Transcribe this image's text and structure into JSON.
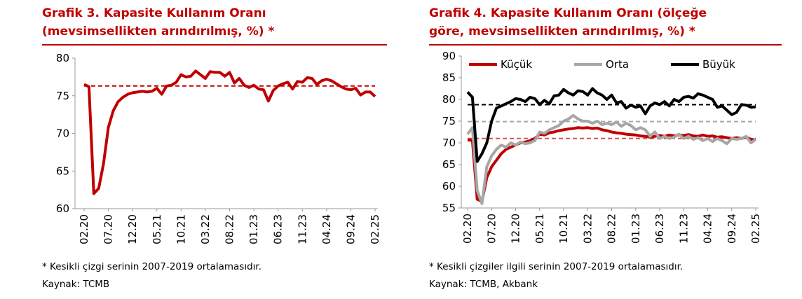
{
  "chart_data": [
    {
      "type": "line",
      "title": [
        "Grafik 3. Kapasite Kullanım Oranı",
        "(mevsimsellikten arındırılmış, %) *"
      ],
      "note": "* Kesikli çizgi serinin 2007-2019 ortalamasıdır.",
      "source": "Kaynak: TCMB",
      "categories": [
        "02.20",
        null,
        null,
        null,
        null,
        "07.20",
        null,
        null,
        null,
        null,
        "12.20",
        null,
        null,
        null,
        null,
        "05.21",
        null,
        null,
        null,
        null,
        "10.21",
        null,
        null,
        null,
        null,
        "03.22",
        null,
        null,
        null,
        null,
        "08.22",
        null,
        null,
        null,
        null,
        "01.23",
        null,
        null,
        null,
        null,
        "06.23",
        null,
        null,
        null,
        null,
        "11.23",
        null,
        null,
        null,
        null,
        "04.24",
        null,
        null,
        null,
        null,
        "09.24",
        null,
        null,
        null,
        null,
        "02.25"
      ],
      "series": [
        {
          "color": "#c00000",
          "values": [
            76.5,
            76.2,
            62,
            62.7,
            66,
            70.8,
            73,
            74.2,
            74.8,
            75.2,
            75.4,
            75.5,
            75.6,
            75.5,
            75.6,
            76,
            75.2,
            76.3,
            76.4,
            76.8,
            77.8,
            77.5,
            77.6,
            78.3,
            77.8,
            77.3,
            78.2,
            78.1,
            78.1,
            77.6,
            78.1,
            76.7,
            77.3,
            76.4,
            76.1,
            76.4,
            75.9,
            75.8,
            74.3,
            75.7,
            76.3,
            76.6,
            76.8,
            75.9,
            76.9,
            76.8,
            77.4,
            77.3,
            76.5,
            77,
            77.2,
            77,
            76.6,
            76.2,
            75.9,
            75.8,
            76,
            75.1,
            75.5,
            75.5,
            74.9
          ]
        }
      ],
      "reference_lines": [
        {
          "value": 76.3,
          "color": "#c00000"
        }
      ],
      "ylim": [
        60,
        80
      ],
      "yticks": [
        60,
        65,
        70,
        75,
        80
      ]
    },
    {
      "type": "line",
      "title": [
        "Grafik 4. Kapasite Kullanım Oranı (ölçeğe",
        "göre, mevsimsellikten arındırılmış, %) *"
      ],
      "note": "* Kesikli çizgiler ilgili serinin 2007-2019 ortalamasıdır.",
      "source": "Kaynak: TCMB, Akbank",
      "categories": [
        "02.20",
        null,
        null,
        null,
        null,
        "07.20",
        null,
        null,
        null,
        null,
        "12.20",
        null,
        null,
        null,
        null,
        "05.21",
        null,
        null,
        null,
        null,
        "10.21",
        null,
        null,
        null,
        null,
        "03.22",
        null,
        null,
        null,
        null,
        "08.22",
        null,
        null,
        null,
        null,
        "01.23",
        null,
        null,
        null,
        null,
        "06.23",
        null,
        null,
        null,
        null,
        "11.23",
        null,
        null,
        null,
        null,
        "04.24",
        null,
        null,
        null,
        null,
        "09.24",
        null,
        null,
        null,
        null,
        "02.25"
      ],
      "series": [
        {
          "name": "Küçük",
          "color": "#c00000",
          "values": [
            70.7,
            70.5,
            57,
            56.5,
            62,
            64.5,
            66,
            67.5,
            68.5,
            69,
            69.5,
            70,
            70.2,
            70.5,
            71,
            72,
            71.8,
            72.3,
            72.5,
            72.8,
            73,
            73.2,
            73.3,
            73.5,
            73.4,
            73.5,
            73.3,
            73.4,
            73,
            72.8,
            72.5,
            72.3,
            72.2,
            72,
            71.9,
            71.8,
            71.6,
            71.5,
            71.3,
            71.5,
            71.7,
            71.5,
            71.8,
            71.6,
            71.8,
            71.7,
            71.9,
            71.6,
            71.5,
            71.8,
            71.5,
            71.6,
            71.3,
            71.4,
            71.2,
            71,
            71.2,
            71,
            71.3,
            70.8,
            70.7
          ]
        },
        {
          "name": "Orta",
          "color": "#a6a6a6",
          "values": [
            72,
            73.5,
            59,
            56,
            64.5,
            67,
            68.5,
            69.5,
            69,
            70,
            69.5,
            70.2,
            69.8,
            70,
            70.5,
            72.5,
            72.2,
            73,
            73.5,
            74,
            75,
            75.5,
            76.3,
            75.5,
            75,
            75,
            74.5,
            75,
            74.2,
            74.5,
            74.2,
            74.8,
            73.8,
            74.5,
            74,
            73,
            73.5,
            73,
            71.5,
            72.5,
            71,
            71.5,
            71,
            71.3,
            72,
            71,
            71.5,
            70.8,
            71.2,
            70.5,
            71,
            70.3,
            71,
            70.5,
            69.8,
            71,
            70.8,
            71,
            71.5,
            70,
            70.8
          ]
        },
        {
          "name": "Büyük",
          "color": "#000000",
          "values": [
            81.7,
            80.5,
            65.7,
            67.5,
            70,
            75,
            78,
            78.5,
            79,
            79.5,
            80.2,
            80,
            79.5,
            80.5,
            80.2,
            78.8,
            79.8,
            79,
            80.8,
            81,
            82.3,
            81.5,
            81,
            82,
            81.8,
            81,
            82.5,
            81.5,
            81,
            80,
            81,
            79.2,
            79.5,
            78,
            78.7,
            78.2,
            78.5,
            76.7,
            78.5,
            79.2,
            78.8,
            79.5,
            78.5,
            80,
            79.5,
            80.5,
            80.7,
            80.3,
            81.3,
            81,
            80.5,
            80,
            78.2,
            78.5,
            77.5,
            76.5,
            77,
            78.8,
            78.7,
            78.2,
            78.3
          ]
        }
      ],
      "reference_lines": [
        {
          "value": 71,
          "color": "#d9534f"
        },
        {
          "value": 74.9,
          "color": "#a6a6a6"
        },
        {
          "value": 78.8,
          "color": "#000000"
        }
      ],
      "ylim": [
        55,
        90
      ],
      "yticks": [
        55,
        60,
        65,
        70,
        75,
        80,
        85,
        90
      ],
      "legend": "top"
    }
  ]
}
